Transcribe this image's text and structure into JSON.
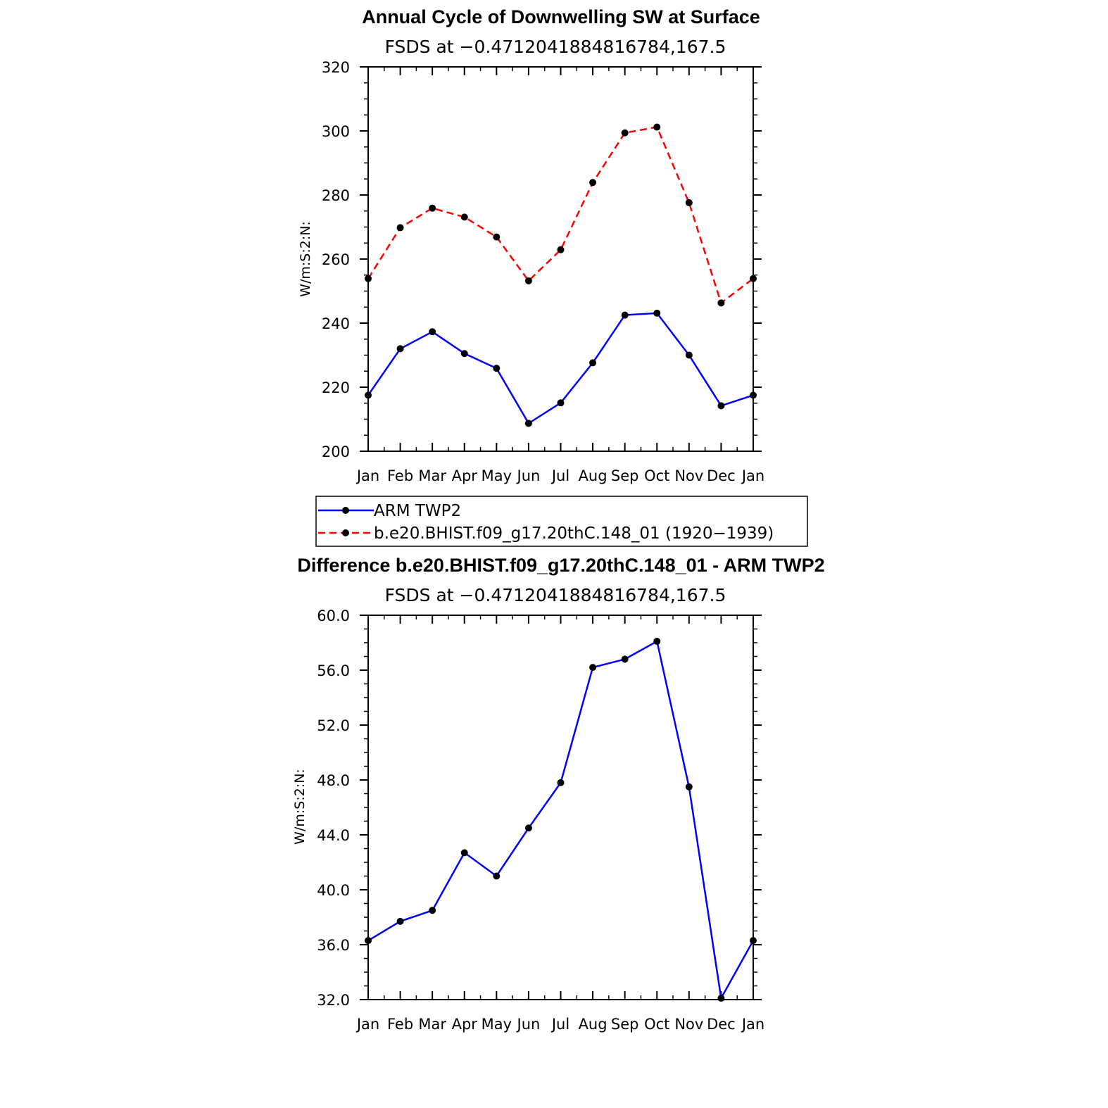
{
  "chart_data": [
    {
      "type": "line",
      "title": "Annual Cycle of Downwelling SW at Surface",
      "subtitle": "FSDS at −0.4712041884816784,167.5",
      "ylabel": "W/m:S:2:N:",
      "categories": [
        "Jan",
        "Feb",
        "Mar",
        "Apr",
        "May",
        "Jun",
        "Jul",
        "Aug",
        "Sep",
        "Oct",
        "Nov",
        "Dec",
        "Jan"
      ],
      "ylim": [
        200,
        320
      ],
      "yticks": [
        "200",
        "220",
        "240",
        "260",
        "280",
        "300",
        "320"
      ],
      "series": [
        {
          "name": "ARM TWP2",
          "color": "#0000ff",
          "dash": "solid",
          "values": [
            217.5,
            232,
            237.3,
            230.5,
            225.9,
            208.7,
            215.1,
            227.6,
            242.5,
            243.1,
            230,
            214.2,
            217.5
          ]
        },
        {
          "name": "b.e20.BHIST.f09_g17.20thC.148_01 (1920−1939)",
          "color": "#ff0000",
          "dash": "dashed",
          "values": [
            253.9,
            269.8,
            275.9,
            273.1,
            266.9,
            253.2,
            262.9,
            283.9,
            299.4,
            301.2,
            277.6,
            246.3,
            253.9
          ]
        }
      ],
      "legend": "below"
    },
    {
      "type": "line",
      "title": "Difference b.e20.BHIST.f09_g17.20thC.148_01 - ARM TWP2",
      "subtitle": "FSDS at −0.4712041884816784,167.5",
      "ylabel": "W/m:S:2:N:",
      "categories": [
        "Jan",
        "Feb",
        "Mar",
        "Apr",
        "May",
        "Jun",
        "Jul",
        "Aug",
        "Sep",
        "Oct",
        "Nov",
        "Dec",
        "Jan"
      ],
      "ylim": [
        32,
        60
      ],
      "yticks": [
        "32.0",
        "36.0",
        "40.0",
        "44.0",
        "48.0",
        "52.0",
        "56.0",
        "60.0"
      ],
      "series": [
        {
          "color": "#0000ff",
          "dash": "solid",
          "values": [
            36.3,
            37.7,
            38.5,
            42.7,
            41.0,
            44.5,
            47.8,
            56.2,
            56.8,
            58.1,
            47.5,
            32.1,
            36.3
          ]
        }
      ]
    }
  ]
}
